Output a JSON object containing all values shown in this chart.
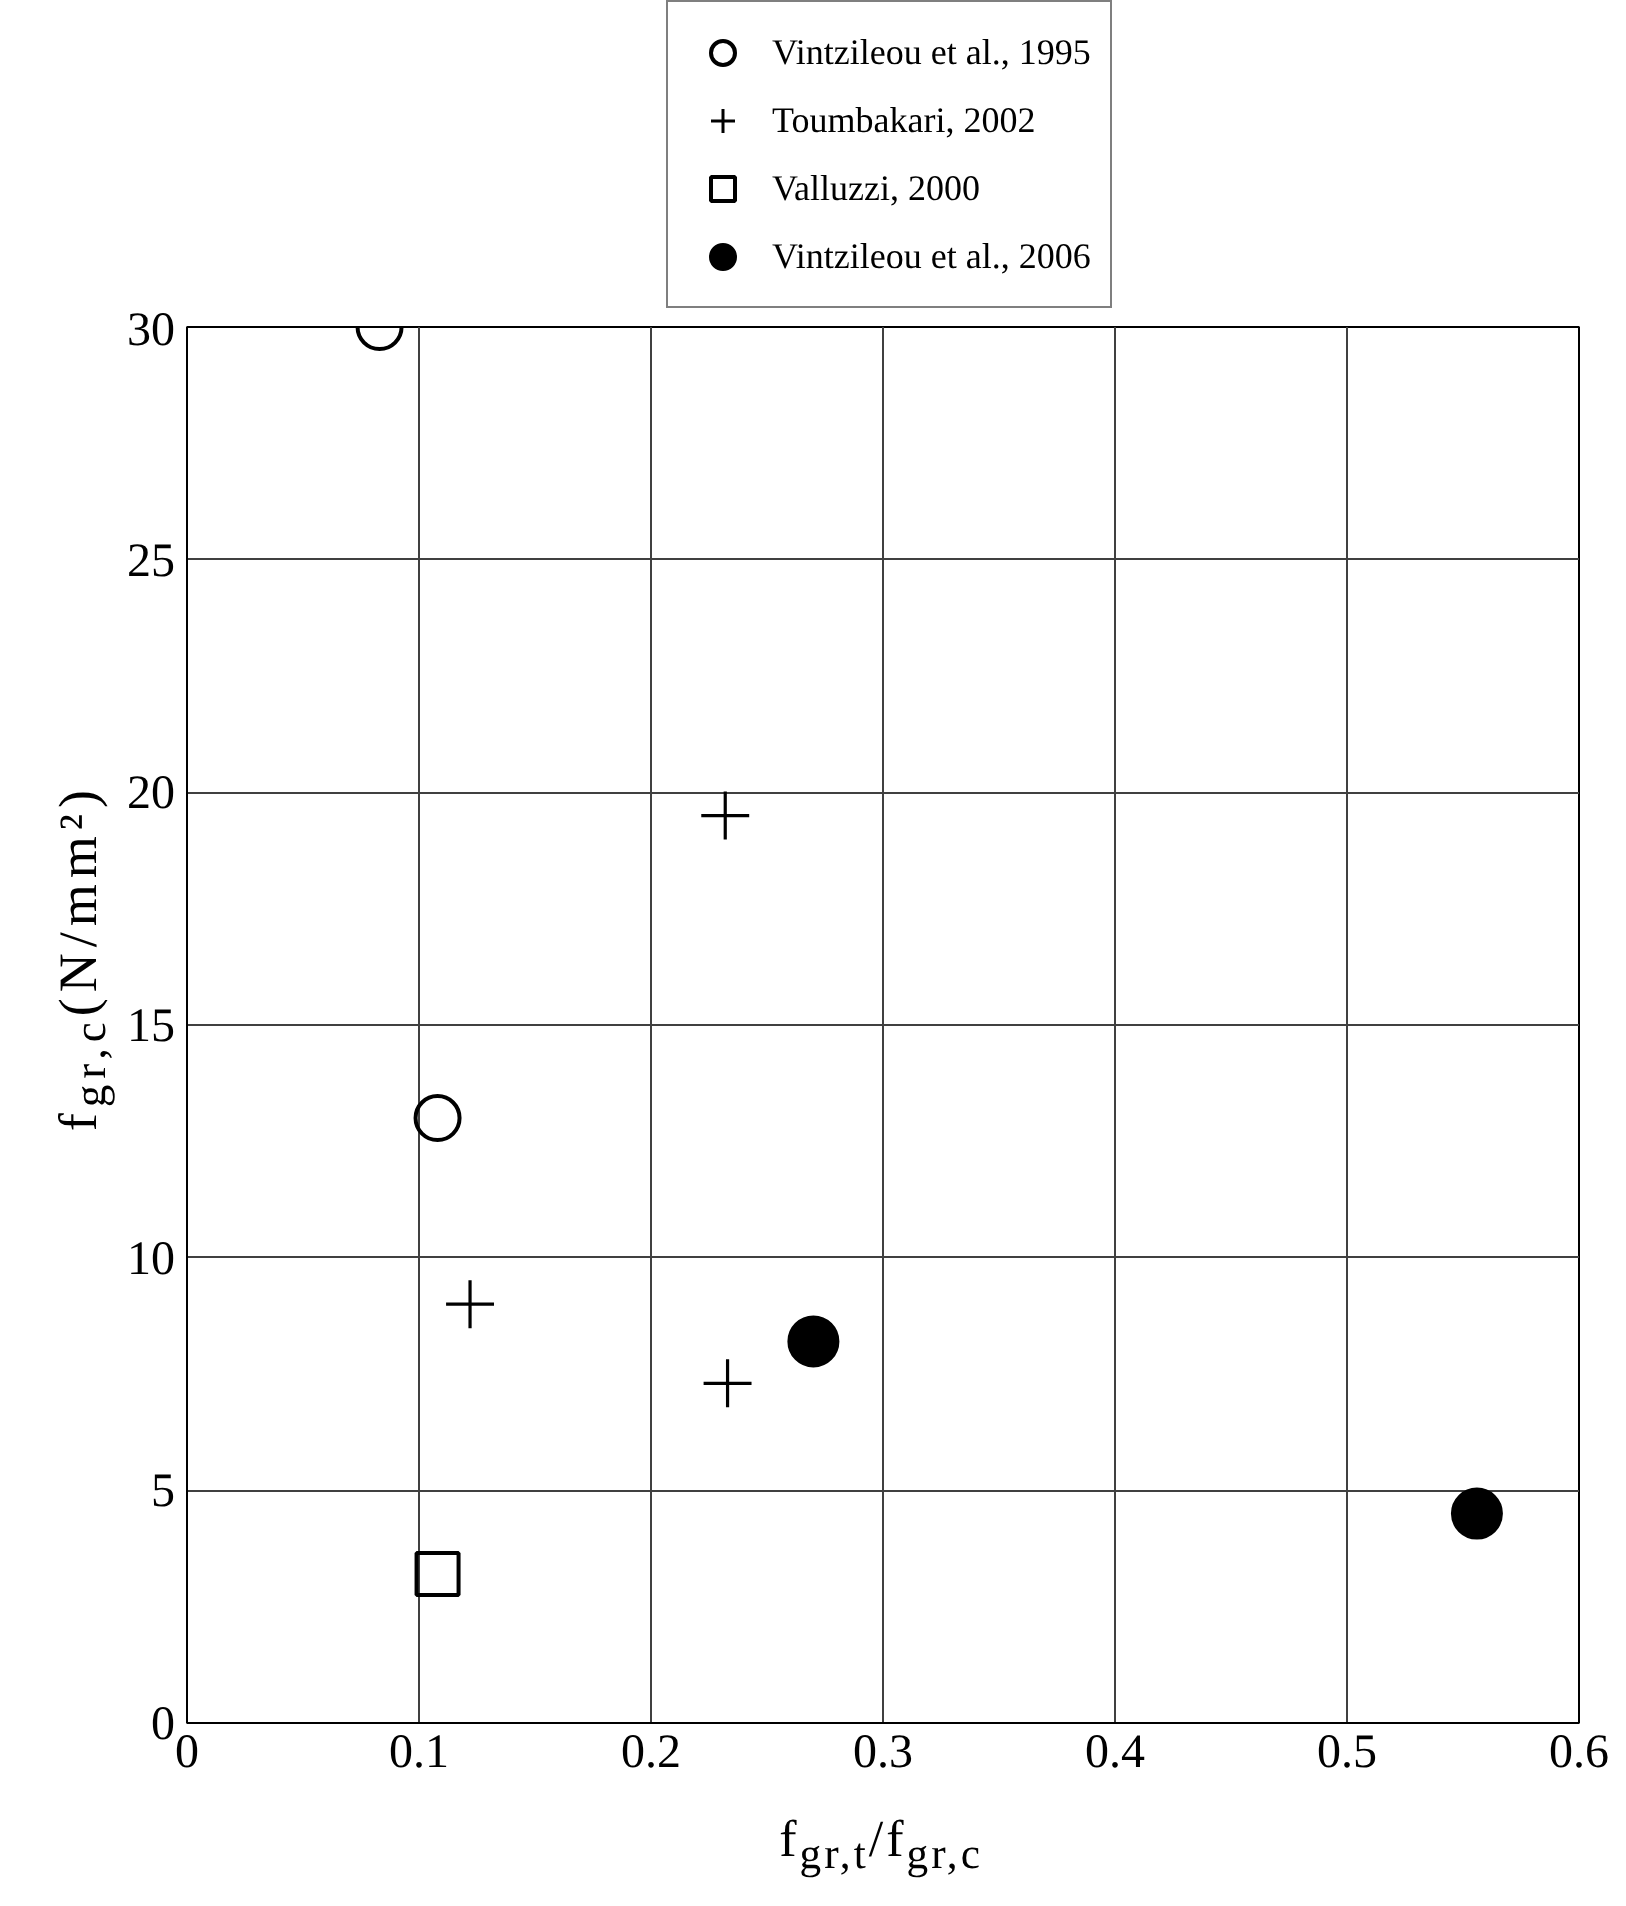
{
  "chart_data": {
    "type": "scatter",
    "xlabel": "f$_{gr,t}$/f$_{gr,c}$",
    "ylabel": "f$_{gr,c}$(N/mm²)",
    "xlim": [
      0,
      0.6
    ],
    "ylim": [
      0,
      30
    ],
    "xticks": [
      0,
      0.1,
      0.2,
      0.3,
      0.4,
      0.5,
      0.6
    ],
    "yticks": [
      0,
      5,
      10,
      15,
      20,
      25,
      30
    ],
    "grid": true,
    "legend": "top",
    "series": [
      {
        "name": "Vintzileou et al., 1995",
        "color": "#000000",
        "marker": "circle_open",
        "x": [
          0.083,
          0.108
        ],
        "values": [
          30,
          13
        ]
      },
      {
        "name": "Toumbakari, 2002",
        "color": "#000000",
        "marker": "cross",
        "x": [
          0.122,
          0.233,
          0.232
        ],
        "values": [
          9.0,
          7.3,
          19.5
        ]
      },
      {
        "name": "Valluzzi, 2000",
        "color": "#000000",
        "marker": "square_open",
        "x": [
          0.108
        ],
        "values": [
          3.2
        ]
      },
      {
        "name": "Vintzileou et al., 2006",
        "color": "#000000",
        "marker": "circle",
        "x": [
          0.27,
          0.556
        ],
        "values": [
          8.2,
          4.5
        ]
      }
    ]
  }
}
